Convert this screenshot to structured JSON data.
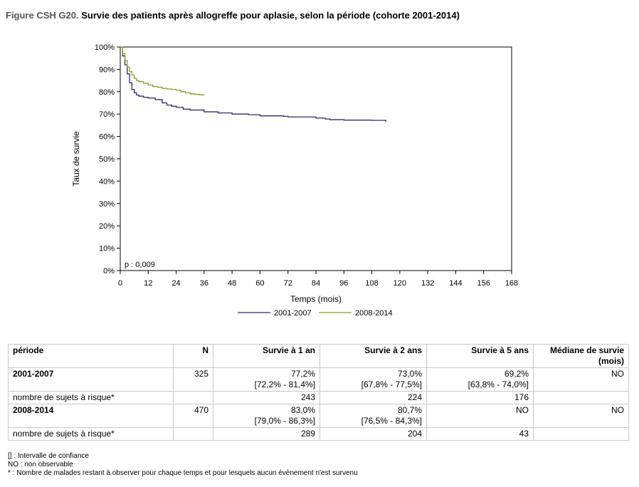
{
  "title": {
    "prefix": "Figure CSH G20.",
    "text": "Survie des patients après allogreffe pour aplasie, selon la période (cohorte 2001-2014)"
  },
  "chart_data": {
    "type": "line",
    "ylabel": "Taux de survie",
    "xlabel": "Temps (mois)",
    "xlim": [
      0,
      168
    ],
    "ylim": [
      0,
      100
    ],
    "xticks": [
      0,
      12,
      24,
      36,
      48,
      60,
      72,
      84,
      96,
      108,
      120,
      132,
      144,
      156,
      168
    ],
    "yticks": [
      "0%",
      "10%",
      "20%",
      "30%",
      "40%",
      "50%",
      "60%",
      "70%",
      "80%",
      "90%",
      "100%"
    ],
    "annotation": "p : 0,009",
    "legend_position": "bottom",
    "series": [
      {
        "name": "2001-2007",
        "color": "#2e2a6b",
        "x": [
          0,
          1,
          2,
          3,
          4,
          5,
          6,
          7,
          8,
          10,
          12,
          15,
          18,
          20,
          22,
          24,
          27,
          30,
          36,
          42,
          48,
          55,
          60,
          70,
          72,
          84,
          88,
          90,
          96,
          108,
          114,
          114
        ],
        "y": [
          100,
          96,
          92,
          88,
          84,
          81,
          79.5,
          78.5,
          78,
          77.5,
          77.2,
          76.5,
          75,
          74,
          73.5,
          73,
          72.2,
          71.8,
          71,
          70.5,
          70,
          69.7,
          69.2,
          69,
          68.7,
          68.2,
          67.8,
          67.5,
          67.3,
          67.2,
          67.2,
          66.5
        ]
      },
      {
        "name": "2008-2014",
        "color": "#8a9a2a",
        "x": [
          0,
          1,
          2,
          3,
          4,
          5,
          6,
          7,
          8,
          10,
          12,
          14,
          16,
          18,
          20,
          22,
          24,
          26,
          28,
          30,
          32,
          34,
          36
        ],
        "y": [
          100,
          97,
          94,
          91,
          89,
          87.5,
          86,
          85,
          84.5,
          83.8,
          83,
          82.3,
          82,
          81.5,
          81.2,
          81,
          80.7,
          80,
          79.5,
          79,
          78.8,
          78.6,
          78.4
        ]
      }
    ]
  },
  "table": {
    "headers": [
      "période",
      "N",
      "Survie à 1 an",
      "Survie à 2 ans",
      "Survie à 5 ans",
      "Médiane de survie (mois)"
    ],
    "rows": [
      {
        "periode": "2001-2007",
        "n": "325",
        "s1": "77,2%",
        "s1_ci": "[72,2% - 81,4%]",
        "s2": "73,0%",
        "s2_ci": "[67,8% - 77,5%]",
        "s5": "69,2%",
        "s5_ci": "[63,8% - 74,0%]",
        "median": "NO"
      },
      {
        "periode": "nombre de sujets à risque*",
        "n": "",
        "s1": "243",
        "s2": "224",
        "s5": "176",
        "median": ""
      },
      {
        "periode": "2008-2014",
        "n": "470",
        "s1": "83,0%",
        "s1_ci": "[79,0% - 86,3%]",
        "s2": "80,7%",
        "s2_ci": "[76,5% - 84,3%]",
        "s5": "NO",
        "s5_ci": "",
        "median": "NO"
      },
      {
        "periode": "nombre de sujets à risque*",
        "n": "",
        "s1": "289",
        "s2": "204",
        "s5": "43",
        "median": ""
      }
    ]
  },
  "footnotes": [
    "[] : Intervalle de confiance",
    "NO : non observable",
    "* : Nombre de malades restant à observer pour chaque temps et pour lesquels aucun évènement n'est survenu"
  ]
}
